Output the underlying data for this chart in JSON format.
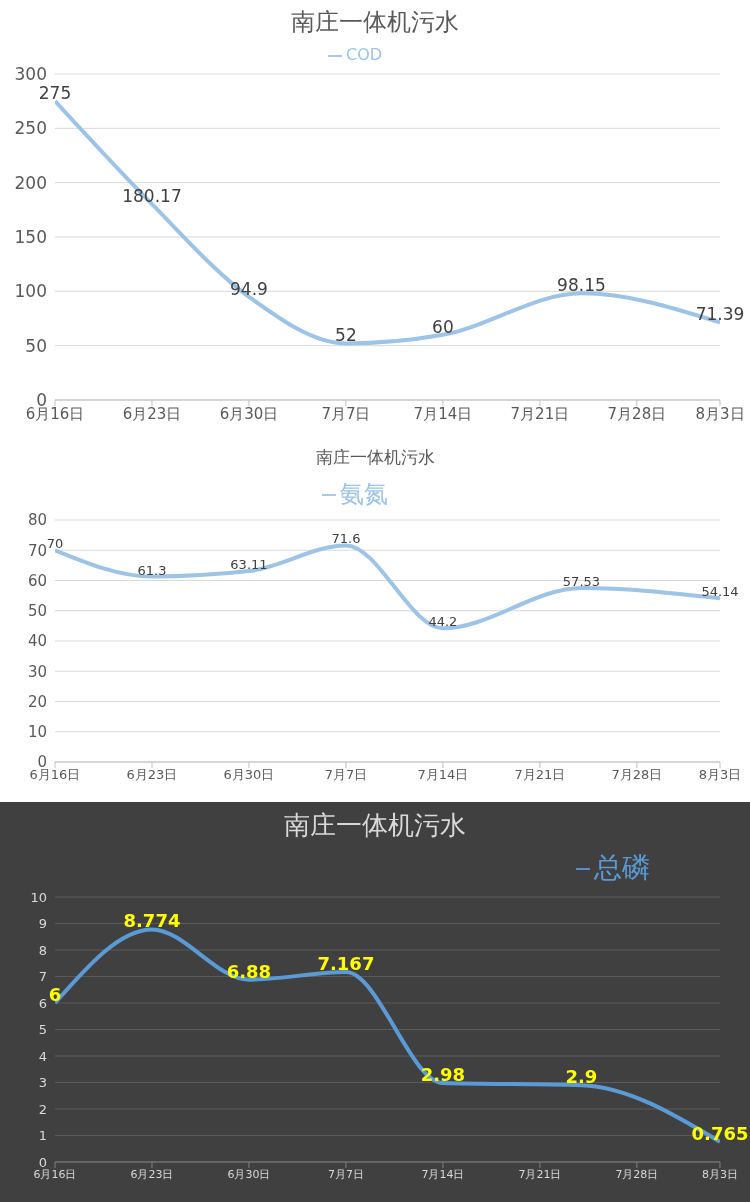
{
  "chart_data": [
    {
      "type": "line",
      "title": "南庄一体机污水",
      "x": [
        "--06-16",
        "--06-23",
        "--06-30",
        "--07-07",
        "--07-14",
        "--07-24",
        "--08-03"
      ],
      "series": [
        {
          "name": "COD",
          "color": "#9dc3e6",
          "values": [
            275,
            180.17,
            94.9,
            52,
            60,
            98.15,
            71.39
          ]
        }
      ],
      "xlim": [
        "--06-16",
        "--08-03"
      ],
      "xticks": [
        {
          "value": "--06-16",
          "label": "6月16日"
        },
        {
          "value": "--06-23",
          "label": "6月23日"
        },
        {
          "value": "--06-30",
          "label": "6月30日"
        },
        {
          "value": "--07-07",
          "label": "7月7日"
        },
        {
          "value": "--07-14",
          "label": "7月14日"
        },
        {
          "value": "--07-21",
          "label": "7月21日"
        },
        {
          "value": "--07-28",
          "label": "7月28日"
        },
        {
          "value": "--08-03",
          "label": "8月3日"
        }
      ],
      "ylim": [
        0,
        300
      ],
      "yticks": [
        0,
        50,
        100,
        150,
        200,
        250,
        300
      ],
      "grid": "y",
      "legend": "top",
      "data_labels": true,
      "marker": "none",
      "line_style": "solid"
    },
    {
      "type": "line",
      "title": "南庄一体机污水",
      "x": [
        "--06-16",
        "--06-23",
        "--06-30",
        "--07-07",
        "--07-14",
        "--07-24",
        "--08-03"
      ],
      "series": [
        {
          "name": "氨氮",
          "color": "#9dc3e6",
          "values": [
            70,
            61.3,
            63.11,
            71.6,
            44.2,
            57.53,
            54.14
          ]
        }
      ],
      "xlim": [
        "--06-16",
        "--08-03"
      ],
      "xticks": [
        {
          "value": "--06-16",
          "label": "6月16日"
        },
        {
          "value": "--06-23",
          "label": "6月23日"
        },
        {
          "value": "--06-30",
          "label": "6月30日"
        },
        {
          "value": "--07-07",
          "label": "7月7日"
        },
        {
          "value": "--07-14",
          "label": "7月14日"
        },
        {
          "value": "--07-21",
          "label": "7月21日"
        },
        {
          "value": "--07-28",
          "label": "7月28日"
        },
        {
          "value": "--08-03",
          "label": "8月3日"
        }
      ],
      "ylim": [
        0,
        80
      ],
      "yticks": [
        0,
        10,
        20,
        30,
        40,
        50,
        60,
        70,
        80
      ],
      "grid": "y",
      "legend": "top",
      "data_labels": true,
      "marker": "none",
      "line_style": "solid"
    },
    {
      "type": "line",
      "title": "南庄一体机污水",
      "x": [
        "--06-16",
        "--06-23",
        "--06-30",
        "--07-07",
        "--07-14",
        "--07-24",
        "--08-03"
      ],
      "series": [
        {
          "name": "总磷",
          "color": "#5b9bd5",
          "values": [
            6,
            8.774,
            6.88,
            7.167,
            2.98,
            2.9,
            0.765
          ]
        }
      ],
      "xlim": [
        "--06-16",
        "--08-03"
      ],
      "xticks": [
        {
          "value": "--06-16",
          "label": "6月16日"
        },
        {
          "value": "--06-23",
          "label": "6月23日"
        },
        {
          "value": "--06-30",
          "label": "6月30日"
        },
        {
          "value": "--07-07",
          "label": "7月7日"
        },
        {
          "value": "--07-14",
          "label": "7月14日"
        },
        {
          "value": "--07-21",
          "label": "7月21日"
        },
        {
          "value": "--07-28",
          "label": "7月28日"
        },
        {
          "value": "--08-03",
          "label": "8月3日"
        }
      ],
      "ylim": [
        0,
        10
      ],
      "yticks": [
        0,
        1,
        2,
        3,
        4,
        5,
        6,
        7,
        8,
        9,
        10
      ],
      "grid": "y",
      "legend": "top right",
      "data_labels": true,
      "marker": "none",
      "line_style": "solid"
    }
  ]
}
